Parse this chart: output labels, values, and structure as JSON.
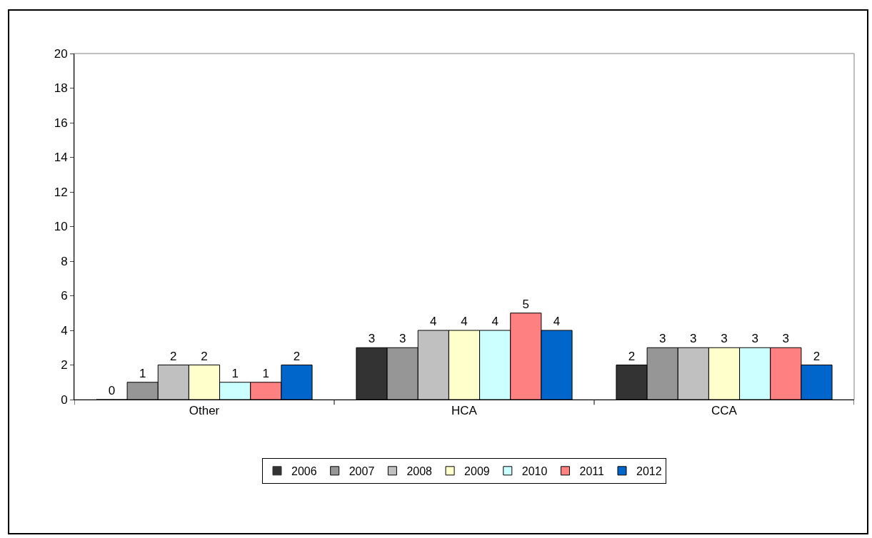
{
  "chart_data": {
    "type": "bar",
    "categories": [
      "Other",
      "HCA",
      "CCA"
    ],
    "series": [
      {
        "name": "2006",
        "color": "#333333",
        "values": [
          0,
          3,
          2
        ]
      },
      {
        "name": "2007",
        "color": "#969696",
        "values": [
          1,
          3,
          3
        ]
      },
      {
        "name": "2008",
        "color": "#c0c0c0",
        "values": [
          2,
          4,
          3
        ]
      },
      {
        "name": "2009",
        "color": "#ffffcc",
        "values": [
          2,
          4,
          3
        ]
      },
      {
        "name": "2010",
        "color": "#ccffff",
        "values": [
          1,
          4,
          3
        ]
      },
      {
        "name": "2011",
        "color": "#ff8080",
        "values": [
          1,
          5,
          3
        ]
      },
      {
        "name": "2012",
        "color": "#0066cc",
        "values": [
          2,
          4,
          2
        ]
      }
    ],
    "ylim": [
      0,
      20
    ],
    "yticks": [
      0,
      2,
      4,
      6,
      8,
      10,
      12,
      14,
      16,
      18,
      20
    ],
    "grid": false,
    "legend": "bottom",
    "data_labels": true
  }
}
